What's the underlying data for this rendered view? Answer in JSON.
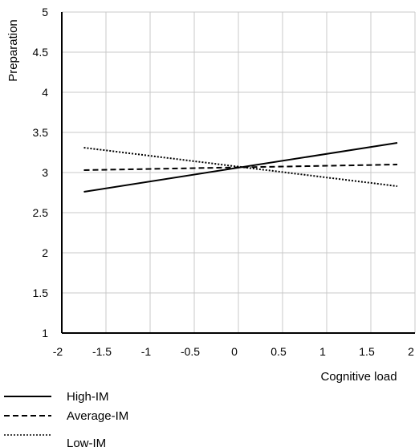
{
  "chart_data": {
    "type": "line",
    "title": "",
    "xlabel": "Cognitive load",
    "ylabel": "Preparation",
    "xlim": [
      -2,
      2
    ],
    "ylim": [
      1,
      5
    ],
    "x_ticks": [
      "-2",
      "-1.5",
      "-1",
      "-0.5",
      "0",
      "0.5",
      "1",
      "1.5",
      "2"
    ],
    "y_ticks": [
      "1",
      "1.5",
      "2",
      "2.5",
      "3",
      "3.5",
      "4",
      "4.5",
      "5"
    ],
    "grid": true,
    "legend_position": "bottom-left",
    "series": [
      {
        "name": "High-IM",
        "style": "solid",
        "x": [
          -1.75,
          1.8
        ],
        "y": [
          2.76,
          3.37
        ]
      },
      {
        "name": "Average-IM",
        "style": "dashed",
        "x": [
          -1.75,
          1.8
        ],
        "y": [
          3.03,
          3.1
        ]
      },
      {
        "name": "Low-IM",
        "style": "dotted",
        "x": [
          -1.75,
          1.8
        ],
        "y": [
          3.31,
          2.83
        ]
      }
    ]
  }
}
